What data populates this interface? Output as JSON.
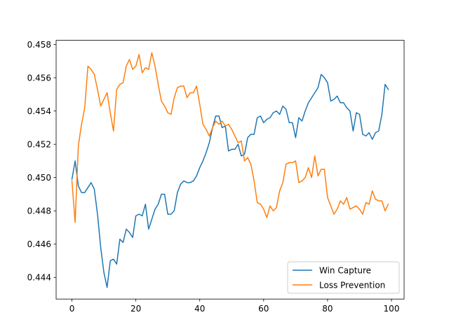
{
  "chart_data": {
    "type": "line",
    "title": "",
    "xlabel": "",
    "ylabel": "",
    "xlim": [
      -4.95,
      103.95
    ],
    "ylim": [
      0.4427,
      0.45825
    ],
    "x_ticks": [
      0,
      20,
      40,
      60,
      80,
      100
    ],
    "y_ticks": [
      0.444,
      0.446,
      0.448,
      0.45,
      0.452,
      0.454,
      0.456,
      0.458
    ],
    "x_tick_labels": [
      "0",
      "20",
      "40",
      "60",
      "80",
      "100"
    ],
    "y_tick_labels": [
      "0.444",
      "0.446",
      "0.448",
      "0.450",
      "0.452",
      "0.454",
      "0.456",
      "0.458"
    ],
    "grid": false,
    "legend_position": "lower-right",
    "series": [
      {
        "name": "Win Capture",
        "color": "#1f77b4",
        "x": [
          0,
          1,
          2,
          3,
          4,
          5,
          6,
          7,
          8,
          9,
          10,
          11,
          12,
          13,
          14,
          15,
          16,
          17,
          18,
          19,
          20,
          21,
          22,
          23,
          24,
          25,
          26,
          27,
          28,
          29,
          30,
          31,
          32,
          33,
          34,
          35,
          36,
          37,
          38,
          39,
          40,
          41,
          42,
          43,
          44,
          45,
          46,
          47,
          48,
          49,
          50,
          51,
          52,
          53,
          54,
          55,
          56,
          57,
          58,
          59,
          60,
          61,
          62,
          63,
          64,
          65,
          66,
          67,
          68,
          69,
          70,
          71,
          72,
          73,
          74,
          75,
          76,
          77,
          78,
          79,
          80,
          81,
          82,
          83,
          84,
          85,
          86,
          87,
          88,
          89,
          90,
          91,
          92,
          93,
          94,
          95,
          96,
          97,
          98,
          99
        ],
        "values": [
          0.4499,
          0.451,
          0.4495,
          0.4491,
          0.4491,
          0.4494,
          0.4497,
          0.4493,
          0.4478,
          0.4458,
          0.4443,
          0.4434,
          0.445,
          0.4451,
          0.4448,
          0.4463,
          0.4461,
          0.4469,
          0.4467,
          0.4464,
          0.4477,
          0.4478,
          0.4477,
          0.4484,
          0.4469,
          0.4475,
          0.4481,
          0.4484,
          0.449,
          0.449,
          0.4478,
          0.4478,
          0.448,
          0.4491,
          0.4496,
          0.4498,
          0.4497,
          0.4497,
          0.4498,
          0.4501,
          0.4506,
          0.451,
          0.4515,
          0.4521,
          0.453,
          0.4537,
          0.4537,
          0.453,
          0.4531,
          0.4516,
          0.4517,
          0.4517,
          0.452,
          0.4513,
          0.4514,
          0.4524,
          0.4526,
          0.4526,
          0.4536,
          0.4537,
          0.4533,
          0.4535,
          0.4536,
          0.4539,
          0.454,
          0.4538,
          0.4543,
          0.4541,
          0.4533,
          0.4533,
          0.4524,
          0.4536,
          0.4534,
          0.454,
          0.4545,
          0.4548,
          0.4551,
          0.4554,
          0.4562,
          0.456,
          0.4557,
          0.4546,
          0.4547,
          0.4549,
          0.4545,
          0.4545,
          0.4542,
          0.454,
          0.4528,
          0.4539,
          0.4538,
          0.4526,
          0.4525,
          0.4527,
          0.4523,
          0.4527,
          0.4528,
          0.4538,
          0.4556,
          0.4553
        ]
      },
      {
        "name": "Loss Prevention",
        "color": "#ff7f0e",
        "x": [
          0,
          1,
          2,
          3,
          4,
          5,
          6,
          7,
          8,
          9,
          10,
          11,
          12,
          13,
          14,
          15,
          16,
          17,
          18,
          19,
          20,
          21,
          22,
          23,
          24,
          25,
          26,
          27,
          28,
          29,
          30,
          31,
          32,
          33,
          34,
          35,
          36,
          37,
          38,
          39,
          40,
          41,
          42,
          43,
          44,
          45,
          46,
          47,
          48,
          49,
          50,
          51,
          52,
          53,
          54,
          55,
          56,
          57,
          58,
          59,
          60,
          61,
          62,
          63,
          64,
          65,
          66,
          67,
          68,
          69,
          70,
          71,
          72,
          73,
          74,
          75,
          76,
          77,
          78,
          79,
          80,
          81,
          82,
          83,
          84,
          85,
          86,
          87,
          88,
          89,
          90,
          91,
          92,
          93,
          94,
          95,
          96,
          97,
          98,
          99
        ],
        "values": [
          0.4498,
          0.4473,
          0.4519,
          0.4532,
          0.4542,
          0.4567,
          0.4565,
          0.4562,
          0.4553,
          0.4543,
          0.4547,
          0.4551,
          0.4539,
          0.4528,
          0.4553,
          0.4556,
          0.4557,
          0.4567,
          0.4571,
          0.4565,
          0.4567,
          0.4574,
          0.4563,
          0.4566,
          0.4565,
          0.4575,
          0.4567,
          0.4556,
          0.4546,
          0.4543,
          0.4539,
          0.4538,
          0.4548,
          0.4554,
          0.4555,
          0.4555,
          0.4548,
          0.4551,
          0.4551,
          0.4555,
          0.4544,
          0.4532,
          0.4529,
          0.4525,
          0.453,
          0.4534,
          0.4532,
          0.4534,
          0.4531,
          0.4532,
          0.4529,
          0.4525,
          0.4521,
          0.4522,
          0.451,
          0.4512,
          0.4508,
          0.4498,
          0.4485,
          0.4484,
          0.4481,
          0.4476,
          0.4483,
          0.448,
          0.4482,
          0.4492,
          0.4497,
          0.4508,
          0.4509,
          0.4509,
          0.451,
          0.4497,
          0.4498,
          0.45,
          0.4506,
          0.45,
          0.4513,
          0.4501,
          0.4505,
          0.4505,
          0.4488,
          0.4483,
          0.4478,
          0.4481,
          0.4486,
          0.4484,
          0.4488,
          0.4481,
          0.4482,
          0.4483,
          0.4481,
          0.4478,
          0.4485,
          0.4484,
          0.4492,
          0.4487,
          0.4486,
          0.4486,
          0.448,
          0.4484
        ]
      }
    ]
  }
}
